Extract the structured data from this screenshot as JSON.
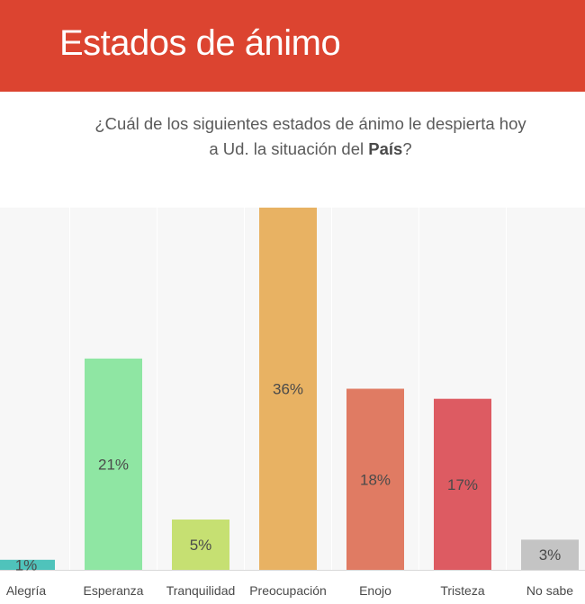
{
  "header": {
    "title": "Estados de ánimo"
  },
  "question": {
    "line1": "¿Cuál de los siguientes estados de ánimo le despierta hoy",
    "line2_prefix": "a Ud. la situación del ",
    "line2_bold": "País",
    "line2_suffix": "?"
  },
  "chart_data": {
    "type": "bar",
    "categories": [
      "Alegría",
      "Esperanza",
      "Tranquilidad",
      "Preocupación",
      "Enojo",
      "Tristeza",
      "No sabe"
    ],
    "values": [
      1,
      21,
      5,
      36,
      18,
      17,
      3
    ],
    "data_labels": [
      "1%",
      "21%",
      "5%",
      "36%",
      "18%",
      "17%",
      "3%"
    ],
    "colors": [
      "#4fc3bb",
      "#8fe6a3",
      "#c6e072",
      "#e8b263",
      "#e07b63",
      "#dd5b62",
      "#c4c4c4"
    ],
    "ylim": [
      0,
      36
    ],
    "title": "",
    "xlabel": "",
    "ylabel": ""
  }
}
